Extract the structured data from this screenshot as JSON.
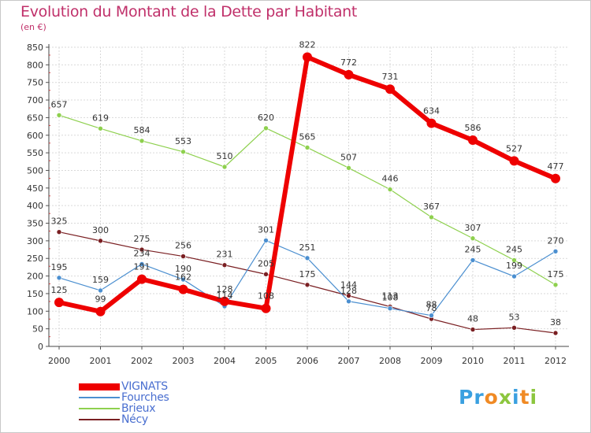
{
  "title": "Evolution du Montant de la Dette par Habitant",
  "subtitle": "(en €)",
  "logo": {
    "text": "Proxiti",
    "letters": [
      "P",
      "r",
      "o",
      "x",
      "i",
      "t",
      "i"
    ],
    "colors": [
      "#3aa0e0",
      "#3aa0e0",
      "#f08a24",
      "#8cc63e",
      "#3aa0e0",
      "#f08a24",
      "#8cc63e"
    ]
  },
  "chart_data": {
    "type": "line",
    "x": [
      "2000",
      "2001",
      "2002",
      "2003",
      "2004",
      "2005",
      "2006",
      "2007",
      "2008",
      "2009",
      "2010",
      "2011",
      "2012"
    ],
    "ylim": [
      0,
      850
    ],
    "yticks": [
      0,
      50,
      100,
      150,
      200,
      250,
      300,
      350,
      400,
      450,
      500,
      550,
      600,
      650,
      700,
      750,
      800,
      850
    ],
    "grid": true,
    "legend_position": "bottom-left",
    "series": [
      {
        "name": "Brieux",
        "color": "#8ed04e",
        "width": 1.2,
        "values": [
          657,
          619,
          584,
          553,
          510,
          620,
          565,
          507,
          446,
          367,
          307,
          245,
          175
        ]
      },
      {
        "name": "Nécy",
        "color": "#7a1f22",
        "width": 1.2,
        "values": [
          325,
          300,
          275,
          256,
          231,
          205,
          175,
          144,
          113,
          78,
          48,
          53,
          38
        ]
      },
      {
        "name": "Fourches",
        "color": "#4b8fd0",
        "width": 1.2,
        "values": [
          195,
          159,
          234,
          190,
          114,
          301,
          251,
          128,
          108,
          88,
          245,
          199,
          270
        ]
      },
      {
        "name": "VIGNATS",
        "color": "#ee0000",
        "width": 6,
        "values": [
          125,
          99,
          191,
          162,
          128,
          108,
          822,
          772,
          731,
          634,
          586,
          527,
          477
        ]
      }
    ],
    "labels": [
      [
        657,
        619,
        584,
        553,
        510,
        620,
        565,
        507,
        446,
        367,
        307,
        245,
        175
      ],
      [
        325,
        300,
        275,
        256,
        231,
        205,
        175,
        144,
        113,
        78,
        48,
        53,
        38
      ],
      [
        195,
        159,
        234,
        190,
        114,
        301,
        251,
        128,
        108,
        88,
        245,
        199,
        270
      ],
      [
        125,
        99,
        191,
        162,
        128,
        108,
        822,
        772,
        731,
        634,
        586,
        527,
        477
      ]
    ]
  },
  "legend": [
    {
      "name": "VIGNATS",
      "color": "#ee0000",
      "thick": true
    },
    {
      "name": "Fourches",
      "color": "#4b8fd0",
      "thick": false
    },
    {
      "name": "Brieux",
      "color": "#8ed04e",
      "thick": false
    },
    {
      "name": "Nécy",
      "color": "#7a1f22",
      "thick": false
    }
  ]
}
